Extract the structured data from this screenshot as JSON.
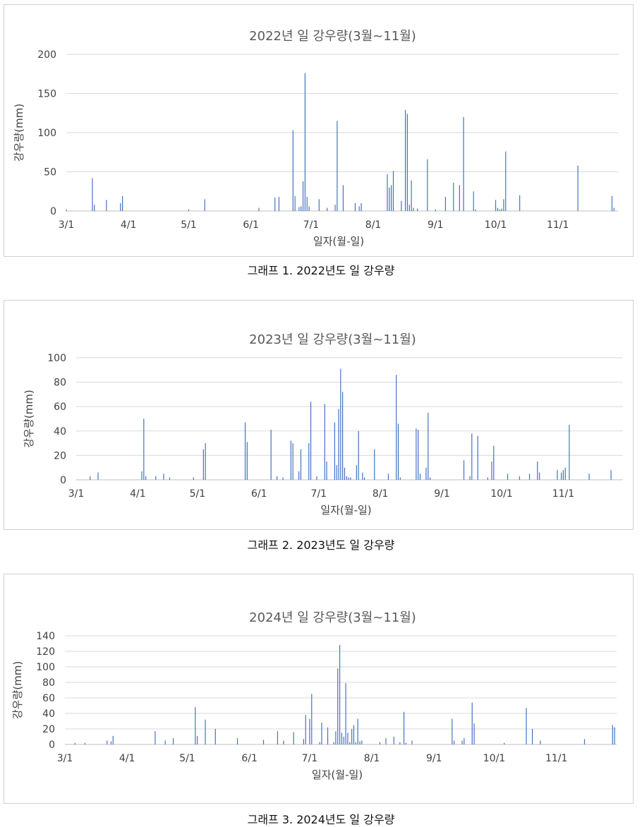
{
  "captions": [
    "그래프 1. 2022년도 일 강우량",
    "그래프 2. 2023년도 일 강우량",
    "그래프 3. 2024년도 일 강우량"
  ],
  "chart_data": [
    {
      "type": "bar",
      "title": "2022년 일 강우량(3월~11월)",
      "xlabel": "일자(월-일)",
      "ylabel": "강우량(mm)",
      "ylim": [
        0,
        200
      ],
      "yticks": [
        0,
        50,
        100,
        150,
        200
      ],
      "xticks": [
        "3/1",
        "4/1",
        "5/1",
        "6/1",
        "7/1",
        "8/1",
        "9/1",
        "10/1",
        "11/1"
      ],
      "grid": true,
      "color": "#4472c4",
      "x": [
        "3/1",
        "3/14",
        "3/15",
        "3/21",
        "3/28",
        "3/29",
        "5/1",
        "5/9",
        "6/5",
        "6/13",
        "6/15",
        "6/22",
        "6/23",
        "6/25",
        "6/26",
        "6/27",
        "6/28",
        "6/29",
        "6/30",
        "7/5",
        "7/9",
        "7/13",
        "7/14",
        "7/17",
        "7/23",
        "7/25",
        "7/26",
        "8/8",
        "8/9",
        "8/10",
        "8/11",
        "8/15",
        "8/17",
        "8/18",
        "8/19",
        "8/20",
        "8/21",
        "8/23",
        "8/28",
        "9/1",
        "9/6",
        "9/10",
        "9/13",
        "9/15",
        "9/20",
        "9/21",
        "10/1",
        "10/2",
        "10/3",
        "10/4",
        "10/5",
        "10/6",
        "10/13",
        "11/11",
        "11/28",
        "11/29"
      ],
      "values": [
        2,
        42,
        8,
        14,
        10,
        19,
        2,
        15,
        4,
        17,
        18,
        103,
        19,
        5,
        6,
        38,
        176,
        18,
        6,
        15,
        4,
        8,
        115,
        33,
        10,
        6,
        10,
        47,
        30,
        33,
        51,
        13,
        129,
        124,
        8,
        39,
        4,
        3,
        66,
        2,
        18,
        36,
        33,
        120,
        25,
        2,
        14,
        4,
        2,
        3,
        15,
        76,
        20,
        58,
        19,
        4
      ]
    },
    {
      "type": "bar",
      "title": "2023년 일 강우량(3월~11월)",
      "xlabel": "일자(월-일)",
      "ylabel": "강우량(mm)",
      "ylim": [
        0,
        100
      ],
      "yticks": [
        0,
        20,
        40,
        60,
        80,
        100
      ],
      "xticks": [
        "3/1",
        "4/1",
        "5/1",
        "6/1",
        "7/1",
        "8/1",
        "9/1",
        "10/1",
        "11/1"
      ],
      "grid": true,
      "color": "#4472c4",
      "x": [
        "3/8",
        "3/12",
        "4/3",
        "4/4",
        "4/5",
        "4/10",
        "4/14",
        "4/17",
        "4/29",
        "5/4",
        "5/5",
        "5/25",
        "5/26",
        "6/7",
        "6/10",
        "6/13",
        "6/17",
        "6/18",
        "6/21",
        "6/22",
        "6/26",
        "6/27",
        "6/30",
        "7/4",
        "7/5",
        "7/9",
        "7/10",
        "7/11",
        "7/12",
        "7/13",
        "7/14",
        "7/15",
        "7/16",
        "7/17",
        "7/20",
        "7/21",
        "7/23",
        "7/24",
        "7/29",
        "8/5",
        "8/9",
        "8/10",
        "8/11",
        "8/19",
        "8/20",
        "8/21",
        "8/24",
        "8/25",
        "8/26",
        "9/12",
        "9/15",
        "9/16",
        "9/19",
        "9/24",
        "9/26",
        "9/27",
        "10/4",
        "10/10",
        "10/15",
        "10/19",
        "10/20",
        "10/29",
        "10/31",
        "11/1",
        "11/2",
        "11/4",
        "11/14",
        "11/25"
      ],
      "values": [
        3,
        6,
        7,
        50,
        3,
        3,
        5,
        2,
        2,
        25,
        30,
        47,
        31,
        41,
        3,
        2,
        32,
        30,
        7,
        25,
        30,
        64,
        3,
        62,
        15,
        47,
        12,
        58,
        91,
        72,
        10,
        3,
        2,
        2,
        12,
        40,
        6,
        2,
        25,
        5,
        86,
        46,
        2,
        42,
        41,
        5,
        10,
        55,
        2,
        16,
        3,
        38,
        36,
        2,
        15,
        28,
        5,
        3,
        5,
        15,
        6,
        8,
        6,
        8,
        10,
        45,
        5,
        8
      ]
    },
    {
      "type": "bar",
      "title": "2024년 일 강우량(3월~11월)",
      "xlabel": "일자(월-일)",
      "ylabel": "강우량(mm)",
      "ylim": [
        0,
        140
      ],
      "yticks": [
        0,
        20,
        40,
        60,
        80,
        100,
        120,
        140
      ],
      "xticks": [
        "3/1",
        "4/1",
        "5/1",
        "6/1",
        "7/1",
        "8/1",
        "9/1",
        "10/1",
        "11/1"
      ],
      "grid": true,
      "color": "#4472c4",
      "x": [
        "3/6",
        "3/11",
        "3/22",
        "3/24",
        "3/25",
        "4/15",
        "4/20",
        "4/24",
        "5/5",
        "5/6",
        "5/10",
        "5/15",
        "5/26",
        "6/8",
        "6/15",
        "6/18",
        "6/23",
        "6/28",
        "6/29",
        "7/1",
        "7/2",
        "7/6",
        "7/7",
        "7/10",
        "7/13",
        "7/14",
        "7/15",
        "7/16",
        "7/17",
        "7/18",
        "7/19",
        "7/20",
        "7/21",
        "7/22",
        "7/23",
        "7/24",
        "7/25",
        "7/26",
        "7/27",
        "8/5",
        "8/8",
        "8/12",
        "8/15",
        "8/17",
        "8/18",
        "8/21",
        "9/10",
        "9/11",
        "9/15",
        "9/16",
        "9/20",
        "9/21",
        "10/6",
        "10/17",
        "10/20",
        "10/24",
        "11/15",
        "11/29",
        "11/30"
      ],
      "values": [
        2,
        2,
        5,
        4,
        11,
        17,
        5,
        8,
        48,
        11,
        32,
        20,
        8,
        6,
        17,
        5,
        16,
        7,
        38,
        33,
        65,
        3,
        28,
        22,
        3,
        17,
        98,
        128,
        15,
        10,
        79,
        15,
        3,
        20,
        25,
        3,
        33,
        4,
        5,
        3,
        8,
        10,
        3,
        42,
        2,
        5,
        33,
        5,
        5,
        8,
        54,
        27,
        2,
        47,
        20,
        5,
        7,
        25,
        22
      ]
    }
  ]
}
